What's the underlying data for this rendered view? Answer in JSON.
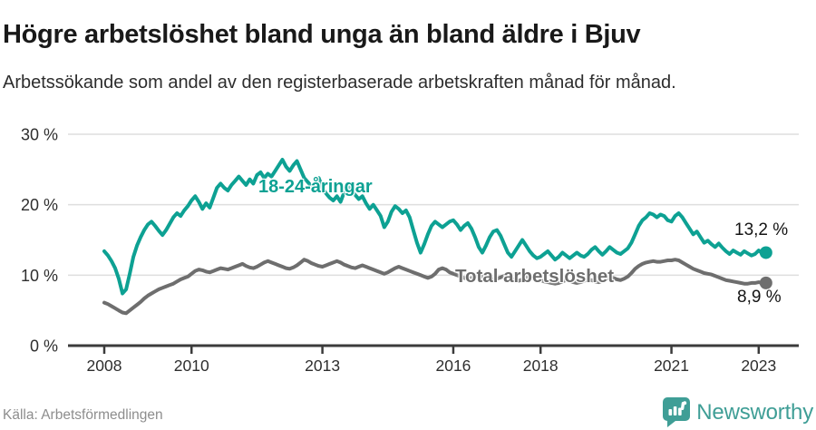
{
  "header": {
    "title": "Högre arbetslöshet bland unga än bland äldre i Bjuv",
    "subtitle": "Arbetssökande som andel av den registerbaserade arbetskraften månad för månad."
  },
  "chart_data": {
    "type": "line",
    "x_unit": "month",
    "x_start": "2008-01",
    "x_end": "2023-03",
    "grid": "horizontal",
    "legend": "inline-labels",
    "colors": {
      "youth_line": "#0da193",
      "total_line": "#6e6e6e",
      "axis": "#3b3b3b",
      "gridline": "#dedede",
      "tick_label": "#2e2e2e"
    },
    "y_axis": {
      "range": [
        0,
        30
      ],
      "ticks": [
        {
          "value": 0,
          "label": "0 %"
        },
        {
          "value": 10,
          "label": "10 %"
        },
        {
          "value": 20,
          "label": "20 %"
        },
        {
          "value": 30,
          "label": "30 %"
        }
      ]
    },
    "x_axis": {
      "ticks": [
        {
          "label": "2008",
          "month": 0
        },
        {
          "label": "2010",
          "month": 24
        },
        {
          "label": "2013",
          "month": 60
        },
        {
          "label": "2016",
          "month": 96
        },
        {
          "label": "2018",
          "month": 120
        },
        {
          "label": "2021",
          "month": 156
        },
        {
          "label": "2023",
          "month": 180
        }
      ]
    },
    "series": [
      {
        "name": "18-24-åringar",
        "color": "#0da193",
        "end_value": 13.2,
        "end_value_label": "13,2 %",
        "values": [
          13.4,
          12.8,
          12.0,
          11.0,
          9.5,
          7.4,
          8.0,
          10.2,
          12.6,
          14.2,
          15.4,
          16.4,
          17.2,
          17.6,
          17.0,
          16.3,
          15.7,
          16.4,
          17.3,
          18.2,
          18.8,
          18.4,
          19.2,
          19.8,
          20.6,
          21.2,
          20.4,
          19.4,
          20.2,
          19.6,
          21.0,
          22.4,
          23.0,
          22.4,
          22.0,
          22.8,
          23.4,
          24.0,
          23.4,
          22.8,
          23.6,
          23.0,
          24.2,
          24.6,
          23.8,
          24.4,
          24.0,
          24.8,
          25.6,
          26.4,
          25.4,
          24.8,
          25.6,
          26.2,
          25.0,
          23.8,
          23.2,
          22.6,
          23.2,
          23.8,
          22.4,
          21.6,
          21.0,
          20.6,
          21.2,
          20.4,
          21.8,
          22.6,
          22.0,
          21.4,
          20.8,
          21.2,
          20.2,
          19.4,
          20.0,
          19.2,
          18.4,
          16.8,
          17.6,
          19.0,
          19.8,
          19.4,
          18.8,
          19.2,
          18.2,
          16.4,
          14.6,
          13.2,
          14.4,
          15.8,
          17.0,
          17.6,
          17.2,
          16.8,
          17.2,
          17.6,
          17.8,
          17.2,
          16.4,
          17.0,
          17.4,
          16.6,
          15.4,
          14.0,
          13.2,
          14.2,
          15.4,
          16.2,
          16.4,
          15.6,
          14.4,
          13.2,
          12.6,
          13.4,
          14.2,
          15.0,
          14.2,
          13.4,
          12.8,
          12.4,
          12.6,
          13.0,
          13.4,
          12.8,
          12.2,
          12.6,
          13.2,
          12.8,
          12.4,
          12.8,
          13.2,
          12.8,
          12.6,
          13.0,
          13.6,
          14.0,
          13.4,
          12.9,
          13.4,
          14.0,
          13.6,
          13.2,
          13.0,
          13.4,
          13.8,
          14.6,
          15.8,
          17.0,
          17.8,
          18.2,
          18.8,
          18.6,
          18.2,
          18.6,
          18.4,
          17.8,
          17.6,
          18.4,
          18.8,
          18.2,
          17.4,
          16.6,
          15.8,
          16.2,
          15.4,
          14.6,
          14.9,
          14.4,
          14.0,
          14.5,
          13.9,
          13.4,
          13.0,
          13.5,
          13.2,
          12.9,
          13.4,
          13.1,
          12.8,
          13.0,
          13.5,
          13.1,
          13.2
        ]
      },
      {
        "name": "Total arbetslöshet",
        "color": "#6e6e6e",
        "end_value": 8.9,
        "end_value_label": "8,9 %",
        "values": [
          6.1,
          5.9,
          5.6,
          5.3,
          5.0,
          4.7,
          4.6,
          5.0,
          5.4,
          5.8,
          6.2,
          6.7,
          7.1,
          7.4,
          7.7,
          8.0,
          8.2,
          8.4,
          8.6,
          8.8,
          9.1,
          9.4,
          9.6,
          9.8,
          10.2,
          10.6,
          10.8,
          10.7,
          10.5,
          10.4,
          10.6,
          10.8,
          11.0,
          10.9,
          10.8,
          11.0,
          11.2,
          11.4,
          11.6,
          11.3,
          11.1,
          11.0,
          11.2,
          11.5,
          11.8,
          12.0,
          11.8,
          11.6,
          11.4,
          11.2,
          11.0,
          10.9,
          11.1,
          11.4,
          11.8,
          12.2,
          12.0,
          11.7,
          11.5,
          11.3,
          11.2,
          11.4,
          11.6,
          11.8,
          12.0,
          11.8,
          11.5,
          11.3,
          11.1,
          11.0,
          11.2,
          11.4,
          11.2,
          11.0,
          10.8,
          10.6,
          10.4,
          10.2,
          10.4,
          10.7,
          11.0,
          11.2,
          11.0,
          10.8,
          10.6,
          10.4,
          10.2,
          10.0,
          9.8,
          9.6,
          9.8,
          10.2,
          10.8,
          11.0,
          10.8,
          10.4,
          10.2,
          10.0,
          9.8,
          9.6,
          9.5,
          9.6,
          9.8,
          10.0,
          9.8,
          9.6,
          9.5,
          9.4,
          9.5,
          9.7,
          9.9,
          9.7,
          9.5,
          9.3,
          9.2,
          9.4,
          9.7,
          9.9,
          9.7,
          9.5,
          9.3,
          9.1,
          9.0,
          8.9,
          8.8,
          8.9,
          9.1,
          9.3,
          9.2,
          9.0,
          8.9,
          9.0,
          9.2,
          9.4,
          9.3,
          9.1,
          9.0,
          9.2,
          9.5,
          9.7,
          9.6,
          9.4,
          9.3,
          9.5,
          9.8,
          10.3,
          10.9,
          11.3,
          11.6,
          11.8,
          11.9,
          12.0,
          11.9,
          11.9,
          12.0,
          12.1,
          12.1,
          12.2,
          12.1,
          11.8,
          11.5,
          11.2,
          10.9,
          10.7,
          10.5,
          10.3,
          10.2,
          10.1,
          9.9,
          9.7,
          9.5,
          9.3,
          9.2,
          9.1,
          9.0,
          8.9,
          8.8,
          8.8,
          8.9,
          8.9,
          9.0,
          8.9,
          8.9
        ]
      }
    ]
  },
  "footer": {
    "source": "Källa: Arbetsförmedlingen",
    "brand": "Newsworthy"
  }
}
